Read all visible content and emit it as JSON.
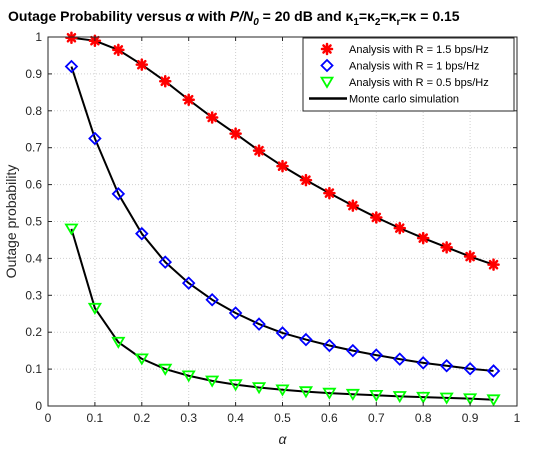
{
  "chart_data": {
    "type": "line",
    "title_parts": [
      "Outage Probability versus ",
      "α",
      " with ",
      "P/N",
      "0",
      " = 20 dB and ",
      "κ",
      "1",
      "=",
      "κ",
      "2",
      "=",
      "κ",
      "r",
      "=",
      "κ",
      " = 0.15"
    ],
    "xlabel": "α",
    "ylabel": "Outage probability",
    "xlim": [
      0,
      1
    ],
    "ylim": [
      0,
      1
    ],
    "xticks": [
      "0",
      "0.1",
      "0.2",
      "0.3",
      "0.4",
      "0.5",
      "0.6",
      "0.7",
      "0.8",
      "0.9",
      "1"
    ],
    "yticks": [
      "0",
      "0.1",
      "0.2",
      "0.3",
      "0.4",
      "0.5",
      "0.6",
      "0.7",
      "0.8",
      "0.9",
      "1"
    ],
    "grid": true,
    "legend_position": "top-right",
    "x": [
      0.05,
      0.1,
      0.15,
      0.2,
      0.25,
      0.3,
      0.35,
      0.4,
      0.45,
      0.5,
      0.55,
      0.6,
      0.65,
      0.7,
      0.75,
      0.8,
      0.85,
      0.9,
      0.95
    ],
    "series": [
      {
        "name": "Analysis with R = 1.5 bps/Hz",
        "marker": "asterisk",
        "color": "#ff0000",
        "values": [
          0.998,
          0.99,
          0.965,
          0.925,
          0.88,
          0.83,
          0.782,
          0.738,
          0.692,
          0.65,
          0.612,
          0.577,
          0.543,
          0.511,
          0.482,
          0.455,
          0.43,
          0.405,
          0.383
        ]
      },
      {
        "name": "Analysis with R = 1 bps/Hz",
        "marker": "diamond",
        "color": "#0000ff",
        "values": [
          0.92,
          0.725,
          0.575,
          0.467,
          0.39,
          0.333,
          0.288,
          0.252,
          0.222,
          0.198,
          0.18,
          0.164,
          0.15,
          0.138,
          0.127,
          0.117,
          0.109,
          0.101,
          0.095
        ]
      },
      {
        "name": "Analysis with R = 0.5 bps/Hz",
        "marker": "triangle-down",
        "color": "#00ff00",
        "values": [
          0.48,
          0.265,
          0.173,
          0.128,
          0.1,
          0.082,
          0.068,
          0.058,
          0.05,
          0.044,
          0.039,
          0.035,
          0.032,
          0.029,
          0.026,
          0.024,
          0.022,
          0.02,
          0.017
        ]
      },
      {
        "name": "Monte carlo simulation",
        "marker": "line",
        "color": "#000000"
      }
    ]
  }
}
